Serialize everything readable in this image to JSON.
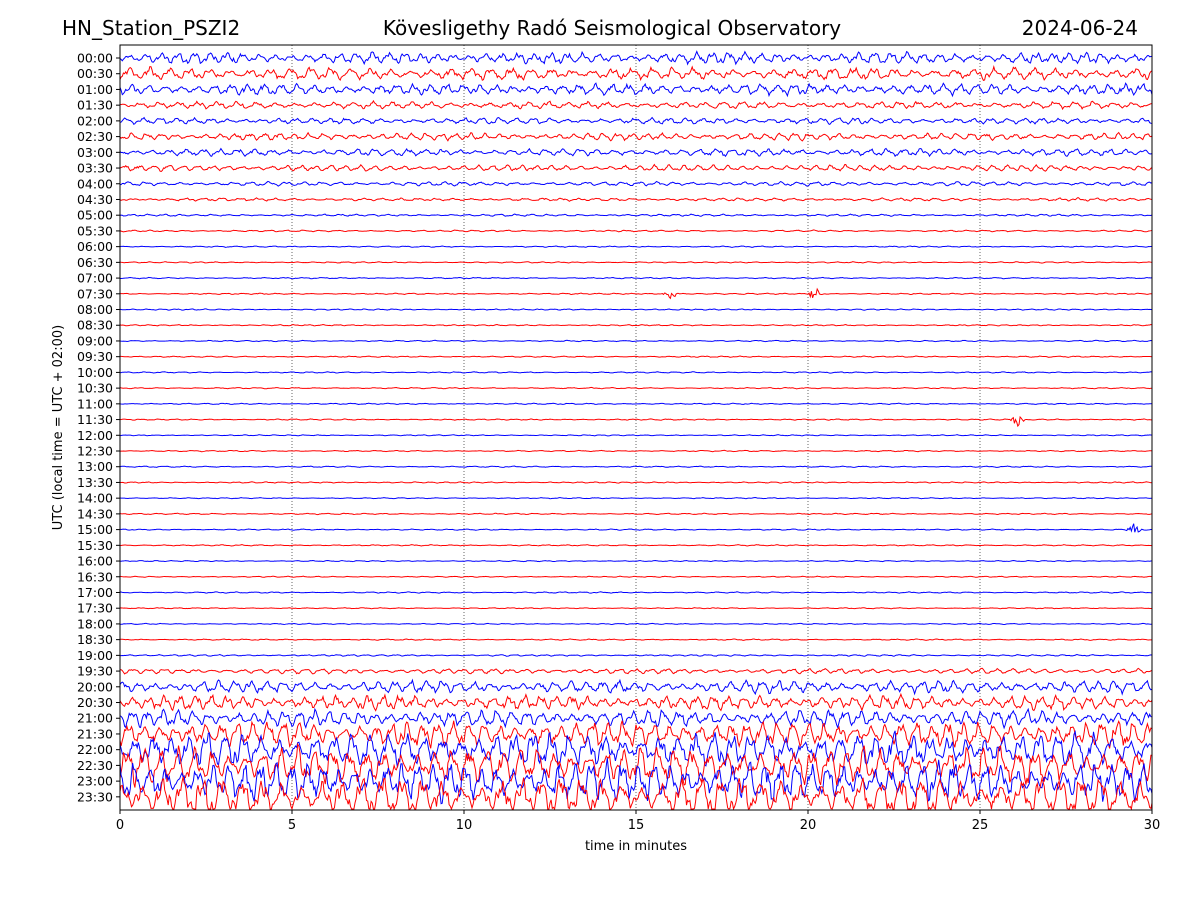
{
  "header": {
    "station": "HN_Station_PSZI2",
    "observatory": "Kövesligethy Radó Seismological Observatory",
    "date": "2024-06-24"
  },
  "chart_data": {
    "type": "line",
    "title": "Kövesligethy Radó Seismological Observatory",
    "xlabel": "time in minutes",
    "ylabel": "UTC (local time = UTC + 02:00)",
    "xlim": [
      0,
      30
    ],
    "x_ticks": [
      "0",
      "5",
      "10",
      "15",
      "20",
      "25",
      "30"
    ],
    "x_tick_values": [
      0,
      5,
      10,
      15,
      20,
      25,
      30
    ],
    "vertical_gridlines_at": [
      5,
      10,
      15,
      20,
      25
    ],
    "row_labels": [
      "00:00",
      "00:30",
      "01:00",
      "01:30",
      "02:00",
      "02:30",
      "03:00",
      "03:30",
      "04:00",
      "04:30",
      "05:00",
      "05:30",
      "06:00",
      "06:30",
      "07:00",
      "07:30",
      "08:00",
      "08:30",
      "09:00",
      "09:30",
      "10:00",
      "10:30",
      "11:00",
      "11:30",
      "12:00",
      "12:30",
      "13:00",
      "13:30",
      "14:00",
      "14:30",
      "15:00",
      "15:30",
      "16:00",
      "16:30",
      "17:00",
      "17:30",
      "18:00",
      "18:30",
      "19:00",
      "19:30",
      "20:00",
      "20:30",
      "21:00",
      "21:30",
      "22:00",
      "22:30",
      "23:00",
      "23:30"
    ],
    "series_colors": [
      "#0000ff",
      "#ff0000"
    ],
    "color_pattern": "alternating blue/red per 30-minute row, starting with blue at 00:00",
    "row_activity_level": [
      0.55,
      0.6,
      0.55,
      0.35,
      0.3,
      0.35,
      0.35,
      0.3,
      0.2,
      0.15,
      0.1,
      0.08,
      0.06,
      0.06,
      0.06,
      0.06,
      0.06,
      0.06,
      0.06,
      0.06,
      0.06,
      0.06,
      0.06,
      0.06,
      0.05,
      0.06,
      0.06,
      0.06,
      0.05,
      0.06,
      0.06,
      0.06,
      0.05,
      0.05,
      0.06,
      0.05,
      0.05,
      0.06,
      0.08,
      0.25,
      0.6,
      0.7,
      0.8,
      1.2,
      1.6,
      1.8,
      1.9,
      2.0
    ],
    "notable_events": [
      {
        "row": "07:30",
        "minute": 16.0
      },
      {
        "row": "07:30",
        "minute": 20.2
      },
      {
        "row": "15:00",
        "minute": 29.5
      },
      {
        "row": "11:30",
        "minute": 26.1
      }
    ]
  }
}
